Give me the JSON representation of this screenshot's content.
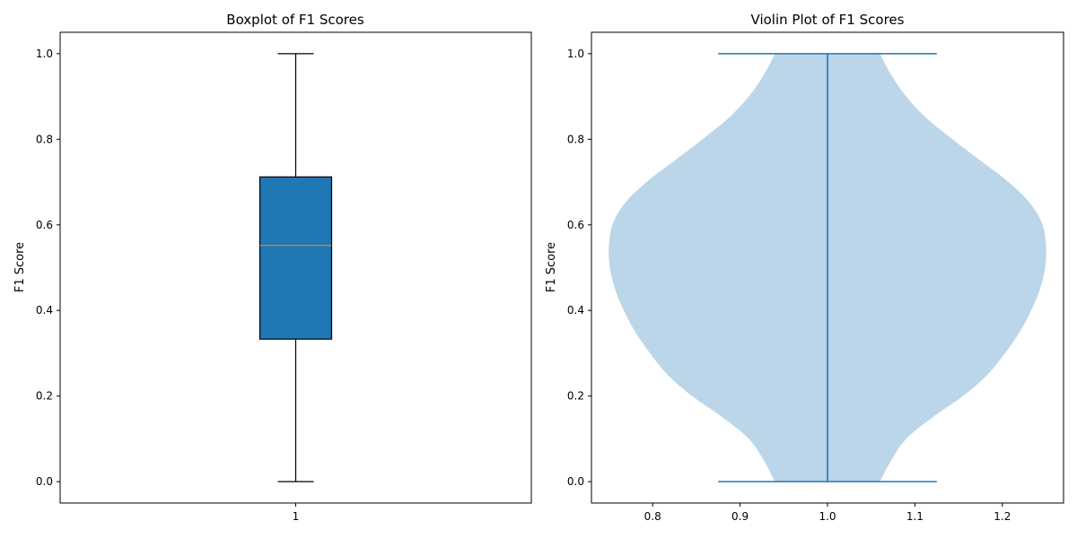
{
  "chart_data": [
    {
      "type": "boxplot",
      "title": "Boxplot of F1 Scores",
      "ylabel": "F1 Score",
      "xlabel": "",
      "xlim": [
        0.5,
        1.5
      ],
      "ylim": [
        -0.05,
        1.05
      ],
      "xticks": [
        1
      ],
      "xtick_labels": [
        "1"
      ],
      "yticks": [
        0.0,
        0.2,
        0.4,
        0.6,
        0.8,
        1.0
      ],
      "ytick_labels": [
        "0.0",
        "0.2",
        "0.4",
        "0.6",
        "0.8",
        "1.0"
      ],
      "grid": false,
      "box": {
        "position": 1,
        "min": 0.0,
        "q1": 0.333,
        "median": 0.552,
        "q3": 0.712,
        "max": 1.0,
        "fill_color": "#1f77b4",
        "median_color": "#ff7f0e",
        "edge_color": "#000000"
      }
    },
    {
      "type": "violin",
      "title": "Violin Plot of F1 Scores",
      "ylabel": "F1 Score",
      "xlabel": "",
      "xlim": [
        0.73,
        1.27
      ],
      "ylim": [
        -0.05,
        1.05
      ],
      "xticks": [
        0.8,
        0.9,
        1.0,
        1.1,
        1.2
      ],
      "xtick_labels": [
        "0.8",
        "0.9",
        "1.0",
        "1.1",
        "1.2"
      ],
      "yticks": [
        0.0,
        0.2,
        0.4,
        0.6,
        0.8,
        1.0
      ],
      "ytick_labels": [
        "0.0",
        "0.2",
        "0.4",
        "0.6",
        "0.8",
        "1.0"
      ],
      "grid": false,
      "violin": {
        "position": 1.0,
        "min": 0.0,
        "max": 1.0,
        "cap_halfwidth": 0.125,
        "fill_color": "#1f77b4",
        "fill_opacity": 0.3,
        "line_color": "#1f77b4",
        "density_profile": [
          {
            "y": 0.0,
            "halfwidth": 0.06
          },
          {
            "y": 0.05,
            "halfwidth": 0.073
          },
          {
            "y": 0.1,
            "halfwidth": 0.09
          },
          {
            "y": 0.15,
            "halfwidth": 0.12
          },
          {
            "y": 0.2,
            "halfwidth": 0.155
          },
          {
            "y": 0.25,
            "halfwidth": 0.183
          },
          {
            "y": 0.3,
            "halfwidth": 0.203
          },
          {
            "y": 0.35,
            "halfwidth": 0.22
          },
          {
            "y": 0.4,
            "halfwidth": 0.233
          },
          {
            "y": 0.45,
            "halfwidth": 0.243
          },
          {
            "y": 0.5,
            "halfwidth": 0.249
          },
          {
            "y": 0.55,
            "halfwidth": 0.25
          },
          {
            "y": 0.6,
            "halfwidth": 0.246
          },
          {
            "y": 0.65,
            "halfwidth": 0.232
          },
          {
            "y": 0.7,
            "halfwidth": 0.207
          },
          {
            "y": 0.75,
            "halfwidth": 0.175
          },
          {
            "y": 0.8,
            "halfwidth": 0.143
          },
          {
            "y": 0.85,
            "halfwidth": 0.113
          },
          {
            "y": 0.9,
            "halfwidth": 0.09
          },
          {
            "y": 0.95,
            "halfwidth": 0.073
          },
          {
            "y": 1.0,
            "halfwidth": 0.06
          }
        ]
      }
    }
  ]
}
